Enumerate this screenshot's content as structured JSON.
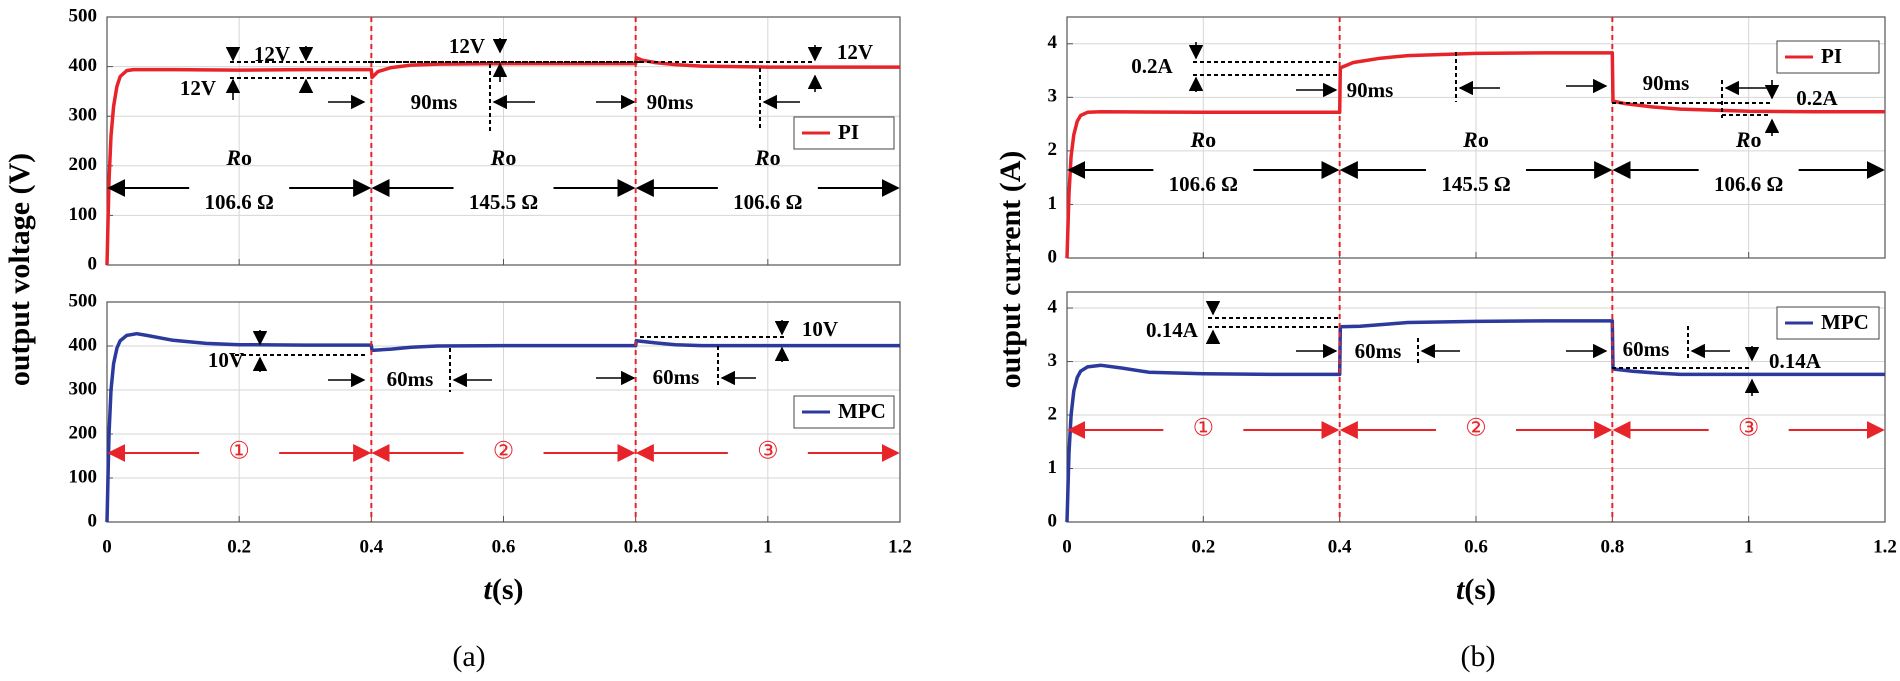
{
  "chart_data": [
    {
      "panel": "(a)",
      "type": "line",
      "ylabel": "output voltage (V)",
      "xlabel": "t(s)",
      "xlabel_parts": {
        "var": "t",
        "unit": "(s)"
      },
      "xlim": [
        0,
        1.2
      ],
      "x_ticks": [
        "0",
        "0.2",
        "0.4",
        "0.6",
        "0.8",
        "1",
        "1.2"
      ],
      "x_tick_values": [
        0,
        0.2,
        0.4,
        0.6,
        0.8,
        1.0,
        1.2
      ],
      "switch_times": [
        0.4,
        0.8
      ],
      "subplots": [
        {
          "name": "top",
          "ylim": [
            0,
            500
          ],
          "y_ticks": [
            0,
            100,
            200,
            300,
            400,
            500
          ],
          "legend": {
            "label": "PI",
            "color": "#e8242b"
          },
          "series": {
            "name": "PI",
            "color": "#e8242b",
            "points": [
              [
                0,
                0
              ],
              [
                0.003,
                170
              ],
              [
                0.006,
                260
              ],
              [
                0.01,
                320
              ],
              [
                0.015,
                360
              ],
              [
                0.02,
                380
              ],
              [
                0.03,
                392
              ],
              [
                0.04,
                394
              ],
              [
                0.1,
                394
              ],
              [
                0.2,
                393
              ],
              [
                0.3,
                394
              ],
              [
                0.4,
                394
              ],
              [
                0.401,
                378
              ],
              [
                0.41,
                390
              ],
              [
                0.43,
                398
              ],
              [
                0.46,
                403
              ],
              [
                0.5,
                405
              ],
              [
                0.6,
                406
              ],
              [
                0.7,
                406
              ],
              [
                0.8,
                406
              ],
              [
                0.801,
                418
              ],
              [
                0.81,
                413
              ],
              [
                0.83,
                408
              ],
              [
                0.86,
                404
              ],
              [
                0.9,
                401
              ],
              [
                1.0,
                399
              ],
              [
                1.1,
                399
              ],
              [
                1.2,
                399
              ]
            ]
          },
          "resistance_labels": [
            {
              "italic": "R",
              "sub": "o",
              "value": "106.6 Ω",
              "x_center": 0.2
            },
            {
              "italic": "R",
              "sub": "o",
              "value": "145.5 Ω",
              "x_center": 0.6
            },
            {
              "italic": "R",
              "sub": "o",
              "value": "106.6 Ω",
              "x_center": 1.0
            }
          ],
          "annotations": [
            "12V",
            "12V",
            "12V",
            "12V",
            "90ms",
            "90ms"
          ]
        },
        {
          "name": "bottom",
          "ylim": [
            0,
            500
          ],
          "y_ticks": [
            0,
            100,
            200,
            300,
            400,
            500
          ],
          "legend": {
            "label": "MPC",
            "color": "#2b3a9c"
          },
          "series": {
            "name": "MPC",
            "color": "#2b3a9c",
            "points": [
              [
                0,
                0
              ],
              [
                0.003,
                200
              ],
              [
                0.006,
                300
              ],
              [
                0.01,
                360
              ],
              [
                0.015,
                395
              ],
              [
                0.02,
                412
              ],
              [
                0.03,
                424
              ],
              [
                0.045,
                428
              ],
              [
                0.06,
                424
              ],
              [
                0.1,
                413
              ],
              [
                0.15,
                406
              ],
              [
                0.2,
                403
              ],
              [
                0.3,
                402
              ],
              [
                0.4,
                402
              ],
              [
                0.401,
                390
              ],
              [
                0.43,
                393
              ],
              [
                0.46,
                397
              ],
              [
                0.5,
                400
              ],
              [
                0.6,
                401
              ],
              [
                0.7,
                401
              ],
              [
                0.8,
                401
              ],
              [
                0.801,
                412
              ],
              [
                0.83,
                407
              ],
              [
                0.86,
                403
              ],
              [
                0.9,
                401
              ],
              [
                1.0,
                401
              ],
              [
                1.2,
                401
              ]
            ]
          },
          "region_labels": [
            "①",
            "②",
            "③"
          ],
          "annotations": [
            "10V",
            "60ms",
            "60ms",
            "10V"
          ]
        }
      ]
    },
    {
      "panel": "(b)",
      "type": "line",
      "ylabel": "output current (A)",
      "xlabel": "t(s)",
      "xlabel_parts": {
        "var": "t",
        "unit": "(s)"
      },
      "xlim": [
        0,
        1.2
      ],
      "x_ticks": [
        "0",
        "0.2",
        "0.4",
        "0.6",
        "0.8",
        "1",
        "1.2"
      ],
      "x_tick_values": [
        0,
        0.2,
        0.4,
        0.6,
        0.8,
        1.0,
        1.2
      ],
      "switch_times": [
        0.4,
        0.8
      ],
      "subplots": [
        {
          "name": "top",
          "ylim": [
            0,
            4.5
          ],
          "y_ticks": [
            0,
            1,
            2,
            3,
            4
          ],
          "legend": {
            "label": "PI",
            "color": "#e8242b"
          },
          "series": {
            "name": "PI",
            "color": "#e8242b",
            "points": [
              [
                0,
                0
              ],
              [
                0.003,
                1.2
              ],
              [
                0.006,
                1.9
              ],
              [
                0.01,
                2.3
              ],
              [
                0.015,
                2.55
              ],
              [
                0.02,
                2.66
              ],
              [
                0.03,
                2.72
              ],
              [
                0.05,
                2.73
              ],
              [
                0.2,
                2.72
              ],
              [
                0.4,
                2.72
              ],
              [
                0.401,
                3.55
              ],
              [
                0.42,
                3.65
              ],
              [
                0.46,
                3.73
              ],
              [
                0.5,
                3.78
              ],
              [
                0.6,
                3.82
              ],
              [
                0.7,
                3.83
              ],
              [
                0.8,
                3.83
              ],
              [
                0.801,
                2.93
              ],
              [
                0.82,
                2.88
              ],
              [
                0.86,
                2.82
              ],
              [
                0.9,
                2.78
              ],
              [
                1.0,
                2.74
              ],
              [
                1.1,
                2.73
              ],
              [
                1.2,
                2.73
              ]
            ]
          },
          "resistance_labels": [
            {
              "italic": "R",
              "sub": "o",
              "value": "106.6 Ω",
              "x_center": 0.2
            },
            {
              "italic": "R",
              "sub": "o",
              "value": "145.5 Ω",
              "x_center": 0.6
            },
            {
              "italic": "R",
              "sub": "o",
              "value": "106.6 Ω",
              "x_center": 1.0
            }
          ],
          "annotations": [
            "0.2A",
            "90ms",
            "90ms",
            "0.2A"
          ]
        },
        {
          "name": "bottom",
          "ylim": [
            0,
            4.3
          ],
          "y_ticks": [
            0,
            1,
            2,
            3,
            4
          ],
          "legend": {
            "label": "MPC",
            "color": "#2b3a9c"
          },
          "series": {
            "name": "MPC",
            "color": "#2b3a9c",
            "points": [
              [
                0,
                0
              ],
              [
                0.003,
                1.3
              ],
              [
                0.006,
                2.0
              ],
              [
                0.01,
                2.45
              ],
              [
                0.015,
                2.7
              ],
              [
                0.02,
                2.82
              ],
              [
                0.03,
                2.9
              ],
              [
                0.05,
                2.93
              ],
              [
                0.08,
                2.88
              ],
              [
                0.12,
                2.8
              ],
              [
                0.2,
                2.77
              ],
              [
                0.3,
                2.76
              ],
              [
                0.4,
                2.76
              ],
              [
                0.401,
                3.65
              ],
              [
                0.43,
                3.66
              ],
              [
                0.47,
                3.7
              ],
              [
                0.5,
                3.73
              ],
              [
                0.6,
                3.75
              ],
              [
                0.7,
                3.76
              ],
              [
                0.8,
                3.76
              ],
              [
                0.801,
                2.86
              ],
              [
                0.83,
                2.82
              ],
              [
                0.87,
                2.78
              ],
              [
                0.9,
                2.76
              ],
              [
                1.0,
                2.76
              ],
              [
                1.2,
                2.76
              ]
            ]
          },
          "region_labels": [
            "①",
            "②",
            "③"
          ],
          "annotations": [
            "0.14A",
            "60ms",
            "60ms",
            "0.14A"
          ]
        }
      ]
    }
  ],
  "captions": [
    "(a)",
    "(b)"
  ]
}
